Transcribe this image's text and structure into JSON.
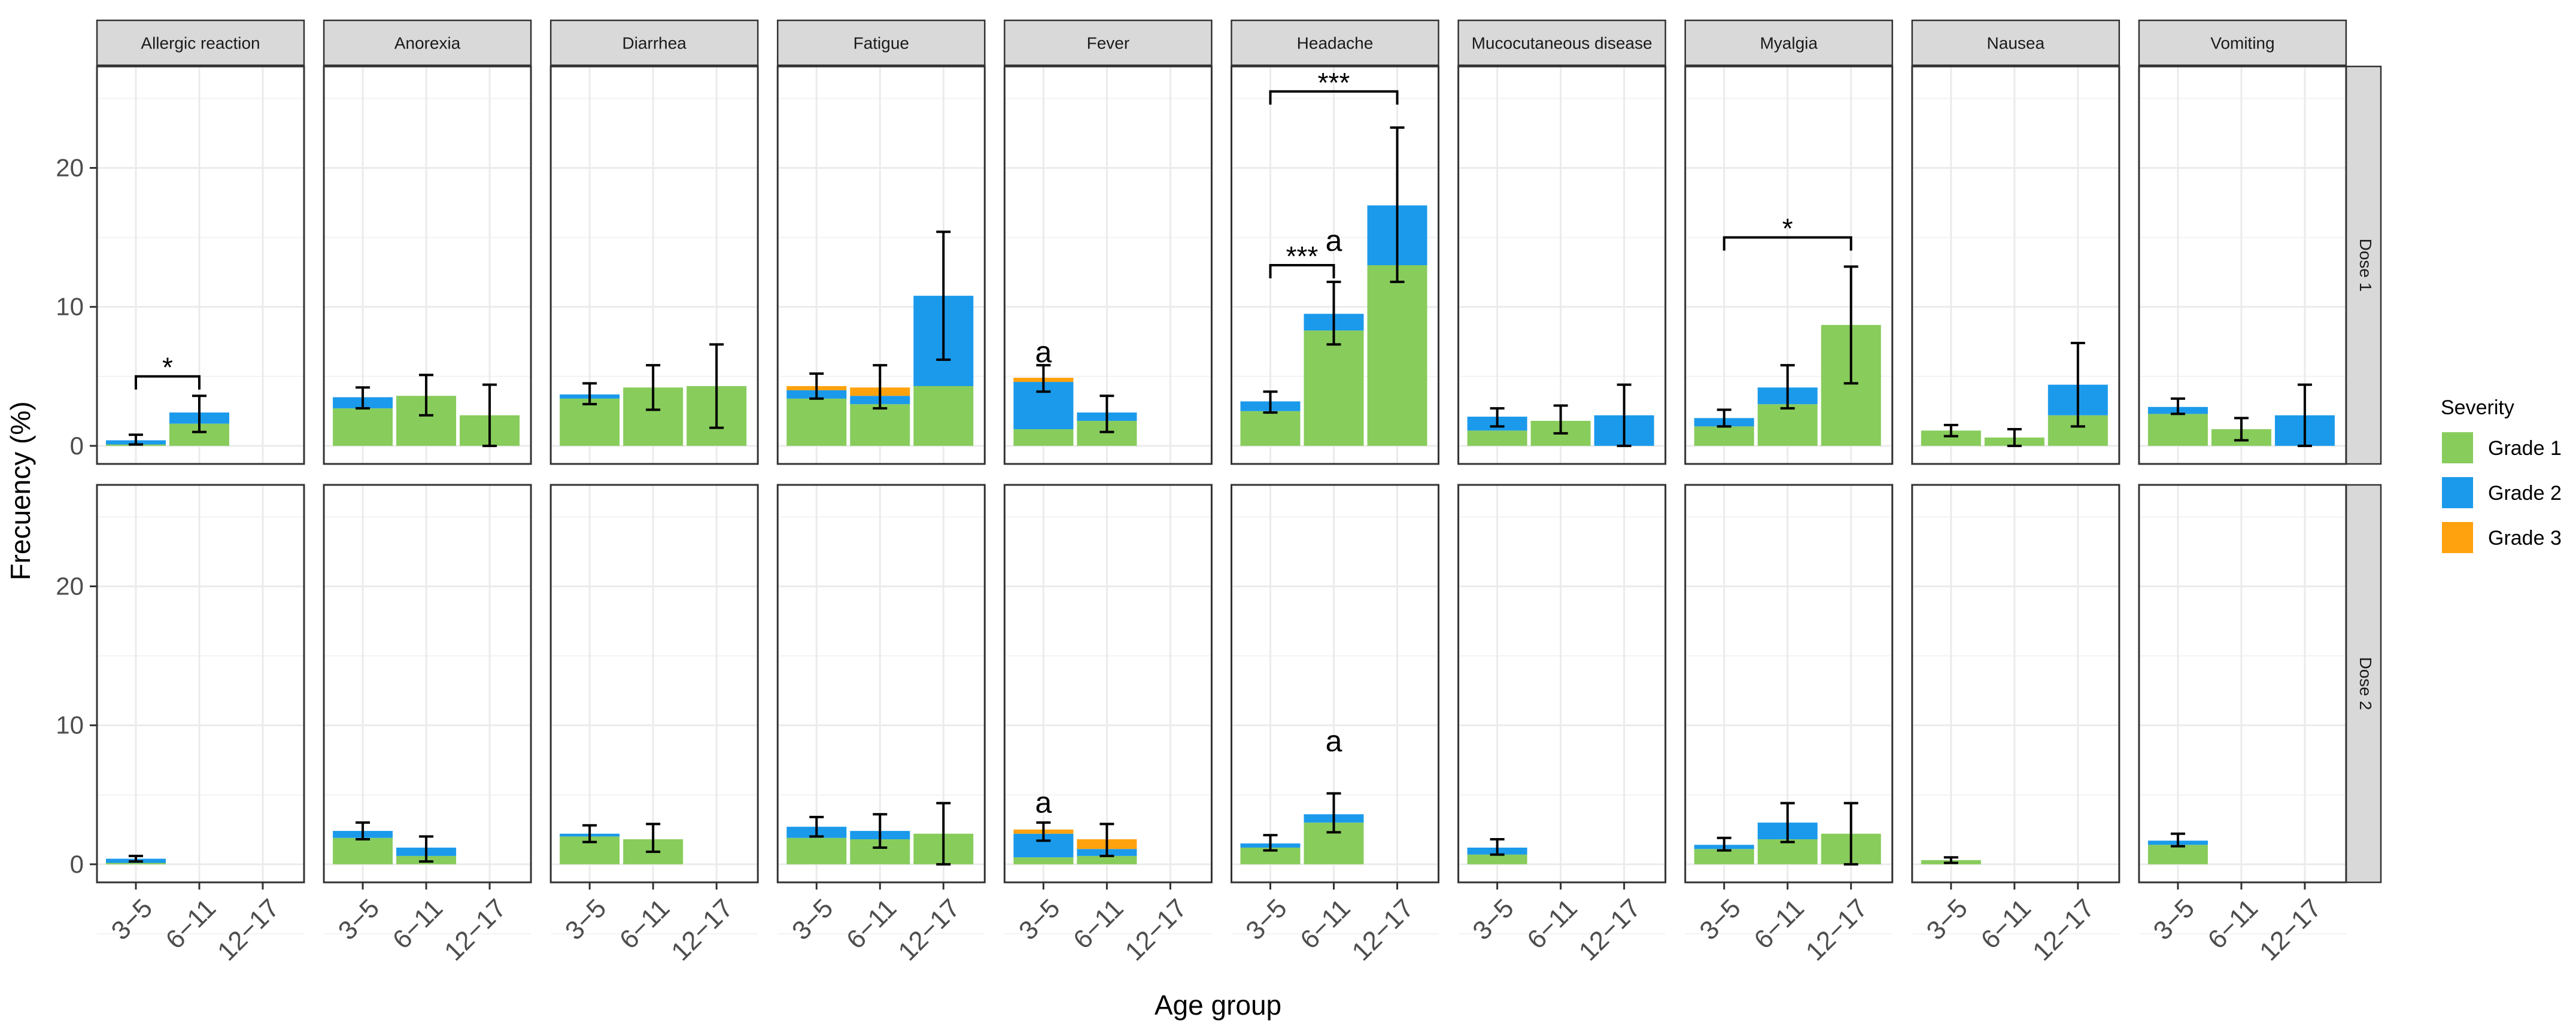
{
  "chart_data": {
    "type": "bar",
    "stacked": true,
    "facet_rows": [
      "Dose 1",
      "Dose 2"
    ],
    "facet_cols": [
      "Allergic reaction",
      "Anorexia",
      "Diarrhea",
      "Fatigue",
      "Fever",
      "Headache",
      "Mucocutaneous disease",
      "Myalgia",
      "Nausea",
      "Vomiting"
    ],
    "categories": [
      "3−5",
      "6−11",
      "12−17"
    ],
    "xlabel": "Age group",
    "ylabel": "Frecuency (%)",
    "ylim": [
      -1.3,
      27.3
    ],
    "yticks": [
      0,
      10,
      20
    ],
    "legend": {
      "title": "Severity",
      "position": "right",
      "entries": [
        {
          "name": "Grade 1",
          "color": "#88CC5C"
        },
        {
          "name": "Grade 2",
          "color": "#1B9AEB"
        },
        {
          "name": "Grade 3",
          "color": "#FFA20E"
        }
      ]
    },
    "panels": [
      {
        "dose": "Dose 1",
        "symptom": "Allergic reaction",
        "bars": [
          {
            "age": "3−5",
            "grade1": 0.1,
            "grade2": 0.3,
            "grade3": 0,
            "ci": [
              0.1,
              0.8
            ]
          },
          {
            "age": "6−11",
            "grade1": 1.6,
            "grade2": 0.8,
            "grade3": 0,
            "ci": [
              1.0,
              3.6
            ]
          },
          {
            "age": "12−17",
            "grade1": 0,
            "grade2": 0,
            "grade3": 0,
            "ci": null
          }
        ],
        "annotations": [
          {
            "type": "bracket",
            "from": 0,
            "to": 1,
            "y": 5.0,
            "label": "*"
          }
        ]
      },
      {
        "dose": "Dose 1",
        "symptom": "Anorexia",
        "bars": [
          {
            "age": "3−5",
            "grade1": 2.7,
            "grade2": 0.8,
            "grade3": 0,
            "ci": [
              2.7,
              4.2
            ]
          },
          {
            "age": "6−11",
            "grade1": 3.6,
            "grade2": 0,
            "grade3": 0,
            "ci": [
              2.2,
              5.1
            ]
          },
          {
            "age": "12−17",
            "grade1": 2.2,
            "grade2": 0,
            "grade3": 0,
            "ci": [
              0,
              4.4
            ]
          }
        ],
        "annotations": []
      },
      {
        "dose": "Dose 1",
        "symptom": "Diarrhea",
        "bars": [
          {
            "age": "3−5",
            "grade1": 3.4,
            "grade2": 0.3,
            "grade3": 0,
            "ci": [
              3.0,
              4.5
            ]
          },
          {
            "age": "6−11",
            "grade1": 4.2,
            "grade2": 0,
            "grade3": 0,
            "ci": [
              2.6,
              5.8
            ]
          },
          {
            "age": "12−17",
            "grade1": 4.3,
            "grade2": 0,
            "grade3": 0,
            "ci": [
              1.3,
              7.3
            ]
          }
        ],
        "annotations": []
      },
      {
        "dose": "Dose 1",
        "symptom": "Fatigue",
        "bars": [
          {
            "age": "3−5",
            "grade1": 3.4,
            "grade2": 0.6,
            "grade3": 0.3,
            "ci": [
              3.4,
              5.2
            ]
          },
          {
            "age": "6−11",
            "grade1": 3.0,
            "grade2": 0.6,
            "grade3": 0.6,
            "ci": [
              2.7,
              5.8
            ]
          },
          {
            "age": "12−17",
            "grade1": 4.3,
            "grade2": 6.5,
            "grade3": 0,
            "ci": [
              6.2,
              15.4
            ]
          }
        ],
        "annotations": []
      },
      {
        "dose": "Dose 1",
        "symptom": "Fever",
        "bars": [
          {
            "age": "3−5",
            "grade1": 1.2,
            "grade2": 3.4,
            "grade3": 0.3,
            "ci": [
              3.9,
              5.8
            ]
          },
          {
            "age": "6−11",
            "grade1": 1.8,
            "grade2": 0.6,
            "grade3": 0,
            "ci": [
              1.0,
              3.6
            ]
          },
          {
            "age": "12−17",
            "grade1": 0,
            "grade2": 0,
            "grade3": 0,
            "ci": null
          }
        ],
        "annotations": [
          {
            "type": "letter",
            "bar": 0,
            "y": 6.8,
            "label": "a"
          }
        ]
      },
      {
        "dose": "Dose 1",
        "symptom": "Headache",
        "bars": [
          {
            "age": "3−5",
            "grade1": 2.5,
            "grade2": 0.7,
            "grade3": 0,
            "ci": [
              2.4,
              3.9
            ]
          },
          {
            "age": "6−11",
            "grade1": 8.3,
            "grade2": 1.2,
            "grade3": 0,
            "ci": [
              7.3,
              11.8
            ]
          },
          {
            "age": "12−17",
            "grade1": 13.0,
            "grade2": 4.3,
            "grade3": 0,
            "ci": [
              11.8,
              22.9
            ]
          }
        ],
        "annotations": [
          {
            "type": "bracket",
            "from": 0,
            "to": 1,
            "y": 13.0,
            "label": "***"
          },
          {
            "type": "letter",
            "bar": 1,
            "y": 14.8,
            "label": "a"
          },
          {
            "type": "bracket",
            "from": 0,
            "to": 2,
            "y": 25.5,
            "label": "***"
          }
        ]
      },
      {
        "dose": "Dose 1",
        "symptom": "Mucocutaneous disease",
        "bars": [
          {
            "age": "3−5",
            "grade1": 1.1,
            "grade2": 1.0,
            "grade3": 0,
            "ci": [
              1.4,
              2.7
            ]
          },
          {
            "age": "6−11",
            "grade1": 1.8,
            "grade2": 0,
            "grade3": 0,
            "ci": [
              0.9,
              2.9
            ]
          },
          {
            "age": "12−17",
            "grade1": 0,
            "grade2": 2.2,
            "grade3": 0,
            "ci": [
              0,
              4.4
            ]
          }
        ],
        "annotations": []
      },
      {
        "dose": "Dose 1",
        "symptom": "Myalgia",
        "bars": [
          {
            "age": "3−5",
            "grade1": 1.4,
            "grade2": 0.6,
            "grade3": 0,
            "ci": [
              1.4,
              2.6
            ]
          },
          {
            "age": "6−11",
            "grade1": 3.0,
            "grade2": 1.2,
            "grade3": 0,
            "ci": [
              2.7,
              5.8
            ]
          },
          {
            "age": "12−17",
            "grade1": 8.7,
            "grade2": 0,
            "grade3": 0,
            "ci": [
              4.5,
              12.9
            ]
          }
        ],
        "annotations": [
          {
            "type": "bracket",
            "from": 0,
            "to": 2,
            "y": 15.0,
            "label": "*"
          }
        ]
      },
      {
        "dose": "Dose 1",
        "symptom": "Nausea",
        "bars": [
          {
            "age": "3−5",
            "grade1": 1.1,
            "grade2": 0,
            "grade3": 0,
            "ci": [
              0.7,
              1.5
            ]
          },
          {
            "age": "6−11",
            "grade1": 0.6,
            "grade2": 0,
            "grade3": 0,
            "ci": [
              0,
              1.2
            ]
          },
          {
            "age": "12−17",
            "grade1": 2.2,
            "grade2": 2.2,
            "grade3": 0,
            "ci": [
              1.4,
              7.4
            ]
          }
        ],
        "annotations": []
      },
      {
        "dose": "Dose 1",
        "symptom": "Vomiting",
        "bars": [
          {
            "age": "3−5",
            "grade1": 2.3,
            "grade2": 0.5,
            "grade3": 0,
            "ci": [
              2.3,
              3.4
            ]
          },
          {
            "age": "6−11",
            "grade1": 1.2,
            "grade2": 0,
            "grade3": 0,
            "ci": [
              0.4,
              2.0
            ]
          },
          {
            "age": "12−17",
            "grade1": 0,
            "grade2": 2.2,
            "grade3": 0,
            "ci": [
              0,
              4.4
            ]
          }
        ],
        "annotations": []
      },
      {
        "dose": "Dose 2",
        "symptom": "Allergic reaction",
        "bars": [
          {
            "age": "3−5",
            "grade1": 0.1,
            "grade2": 0.3,
            "grade3": 0,
            "ci": [
              0.2,
              0.6
            ]
          },
          {
            "age": "6−11",
            "grade1": 0,
            "grade2": 0,
            "grade3": 0,
            "ci": null
          },
          {
            "age": "12−17",
            "grade1": 0,
            "grade2": 0,
            "grade3": 0,
            "ci": null
          }
        ],
        "annotations": []
      },
      {
        "dose": "Dose 2",
        "symptom": "Anorexia",
        "bars": [
          {
            "age": "3−5",
            "grade1": 1.9,
            "grade2": 0.5,
            "grade3": 0,
            "ci": [
              1.8,
              3.0
            ]
          },
          {
            "age": "6−11",
            "grade1": 0.6,
            "grade2": 0.6,
            "grade3": 0,
            "ci": [
              0.2,
              2.0
            ]
          },
          {
            "age": "12−17",
            "grade1": 0,
            "grade2": 0,
            "grade3": 0,
            "ci": null
          }
        ],
        "annotations": []
      },
      {
        "dose": "Dose 2",
        "symptom": "Diarrhea",
        "bars": [
          {
            "age": "3−5",
            "grade1": 2.0,
            "grade2": 0.2,
            "grade3": 0,
            "ci": [
              1.6,
              2.8
            ]
          },
          {
            "age": "6−11",
            "grade1": 1.8,
            "grade2": 0,
            "grade3": 0,
            "ci": [
              0.9,
              2.9
            ]
          },
          {
            "age": "12−17",
            "grade1": 0,
            "grade2": 0,
            "grade3": 0,
            "ci": null
          }
        ],
        "annotations": []
      },
      {
        "dose": "Dose 2",
        "symptom": "Fatigue",
        "bars": [
          {
            "age": "3−5",
            "grade1": 1.9,
            "grade2": 0.8,
            "grade3": 0,
            "ci": [
              2.0,
              3.4
            ]
          },
          {
            "age": "6−11",
            "grade1": 1.8,
            "grade2": 0.6,
            "grade3": 0,
            "ci": [
              1.2,
              3.6
            ]
          },
          {
            "age": "12−17",
            "grade1": 2.2,
            "grade2": 0,
            "grade3": 0,
            "ci": [
              0,
              4.4
            ]
          }
        ],
        "annotations": []
      },
      {
        "dose": "Dose 2",
        "symptom": "Fever",
        "bars": [
          {
            "age": "3−5",
            "grade1": 0.5,
            "grade2": 1.7,
            "grade3": 0.3,
            "ci": [
              1.7,
              3.0
            ]
          },
          {
            "age": "6−11",
            "grade1": 0.6,
            "grade2": 0.5,
            "grade3": 0.7,
            "ci": [
              0.6,
              2.9
            ]
          },
          {
            "age": "12−17",
            "grade1": 0,
            "grade2": 0,
            "grade3": 0,
            "ci": null
          }
        ],
        "annotations": [
          {
            "type": "letter",
            "bar": 0,
            "y": 4.5,
            "label": "a"
          }
        ]
      },
      {
        "dose": "Dose 2",
        "symptom": "Headache",
        "bars": [
          {
            "age": "3−5",
            "grade1": 1.2,
            "grade2": 0.3,
            "grade3": 0,
            "ci": [
              1.0,
              2.1
            ]
          },
          {
            "age": "6−11",
            "grade1": 3.0,
            "grade2": 0.6,
            "grade3": 0,
            "ci": [
              2.3,
              5.1
            ]
          },
          {
            "age": "12−17",
            "grade1": 0,
            "grade2": 0,
            "grade3": 0,
            "ci": null
          }
        ],
        "annotations": [
          {
            "type": "letter",
            "bar": 1,
            "y": 8.9,
            "label": "a"
          }
        ]
      },
      {
        "dose": "Dose 2",
        "symptom": "Mucocutaneous disease",
        "bars": [
          {
            "age": "3−5",
            "grade1": 0.7,
            "grade2": 0.5,
            "grade3": 0,
            "ci": [
              0.7,
              1.8
            ]
          },
          {
            "age": "6−11",
            "grade1": 0,
            "grade2": 0,
            "grade3": 0,
            "ci": null
          },
          {
            "age": "12−17",
            "grade1": 0,
            "grade2": 0,
            "grade3": 0,
            "ci": null
          }
        ],
        "annotations": []
      },
      {
        "dose": "Dose 2",
        "symptom": "Myalgia",
        "bars": [
          {
            "age": "3−5",
            "grade1": 1.1,
            "grade2": 0.3,
            "grade3": 0,
            "ci": [
              1.0,
              1.9
            ]
          },
          {
            "age": "6−11",
            "grade1": 1.8,
            "grade2": 1.2,
            "grade3": 0,
            "ci": [
              1.6,
              4.4
            ]
          },
          {
            "age": "12−17",
            "grade1": 2.2,
            "grade2": 0,
            "grade3": 0,
            "ci": [
              0,
              4.4
            ]
          }
        ],
        "annotations": []
      },
      {
        "dose": "Dose 2",
        "symptom": "Nausea",
        "bars": [
          {
            "age": "3−5",
            "grade1": 0.3,
            "grade2": 0,
            "grade3": 0,
            "ci": [
              0.1,
              0.5
            ]
          },
          {
            "age": "6−11",
            "grade1": 0,
            "grade2": 0,
            "grade3": 0,
            "ci": null
          },
          {
            "age": "12−17",
            "grade1": 0,
            "grade2": 0,
            "grade3": 0,
            "ci": null
          }
        ],
        "annotations": []
      },
      {
        "dose": "Dose 2",
        "symptom": "Vomiting",
        "bars": [
          {
            "age": "3−5",
            "grade1": 1.4,
            "grade2": 0.3,
            "grade3": 0,
            "ci": [
              1.3,
              2.2
            ]
          },
          {
            "age": "6−11",
            "grade1": 0,
            "grade2": 0,
            "grade3": 0,
            "ci": null
          },
          {
            "age": "12−17",
            "grade1": 0,
            "grade2": 0,
            "grade3": 0,
            "ci": null
          }
        ],
        "annotations": []
      }
    ]
  }
}
